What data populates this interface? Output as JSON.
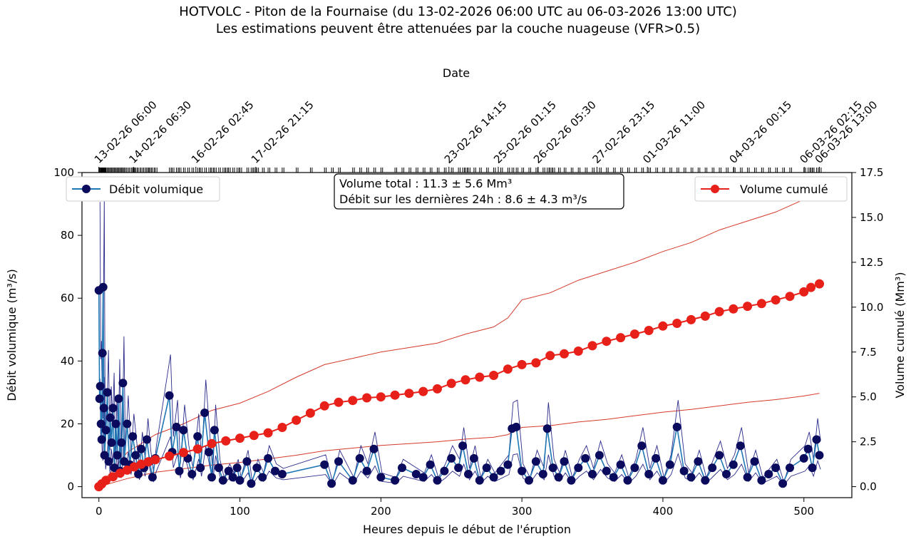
{
  "header": {
    "title": "HOTVOLC - Piton de la Fournaise (du 13-02-2026 06:00 UTC au 06-03-2026 13:00 UTC)",
    "subtitle": "Les estimations peuvent être attenuées par la couche nuageuse (VFR>0.5)"
  },
  "colors": {
    "debit_line": "#1f77b4",
    "debit_marker": "#0b0b5e",
    "volume": "#e8201a",
    "envelope": "#d43a2a",
    "debit_envelope": "#2a2a8a"
  },
  "chart_data": {
    "type": "line",
    "xlabel": "Heures depuis le début de l'éruption",
    "xlim": [
      -12,
      534
    ],
    "xticks": [
      0,
      100,
      200,
      300,
      400,
      500
    ],
    "top_axis_label": "Date",
    "top_ticks": [
      {
        "x": 0,
        "label": "13-02-26 06:00"
      },
      {
        "x": 24.5,
        "label": "14-02-26 06:30"
      },
      {
        "x": 68.75,
        "label": "16-02-26 02:45"
      },
      {
        "x": 111.25,
        "label": "17-02-26 21:15"
      },
      {
        "x": 248.25,
        "label": "23-02-26 14:15"
      },
      {
        "x": 283.25,
        "label": "25-02-26 01:15"
      },
      {
        "x": 311.5,
        "label": "26-02-26 05:30"
      },
      {
        "x": 353.25,
        "label": "27-02-26 23:15"
      },
      {
        "x": 389,
        "label": "01-03-26 11:00"
      },
      {
        "x": 450.25,
        "label": "04-03-26 00:15"
      },
      {
        "x": 500.25,
        "label": "06-03-26 02:15"
      },
      {
        "x": 511,
        "label": "06-03-26 13:00"
      }
    ],
    "left_axis": {
      "label": "Débit volumique (m³/s)",
      "ylim": [
        -3.5,
        100
      ],
      "ticks": [
        0,
        20,
        40,
        60,
        80,
        100
      ]
    },
    "right_axis": {
      "label": "Volume cumulé (Mm³)",
      "ylim": [
        -0.6125,
        17.5
      ],
      "ticks": [
        "0.0",
        "2.5",
        "5.0",
        "7.5",
        "10.0",
        "12.5",
        "15.0",
        "17.5"
      ]
    },
    "legend_left": {
      "label": "Débit volumique",
      "position": "upper-left"
    },
    "legend_right": {
      "label": "Volume cumulé",
      "position": "upper-right"
    },
    "annotation": [
      "Volume total : 11.3 ± 5.6 Mm³",
      "Débit sur les dernières 24h : 8.6 ± 4.3 m³/s"
    ],
    "series": [
      {
        "name": "Débit volumique",
        "axis": "left",
        "points": [
          [
            0,
            62.5
          ],
          [
            0.5,
            28
          ],
          [
            1,
            32
          ],
          [
            1.5,
            20
          ],
          [
            2,
            15
          ],
          [
            2.5,
            42.5
          ],
          [
            3,
            63.5
          ],
          [
            3.5,
            25
          ],
          [
            4,
            10
          ],
          [
            5,
            18
          ],
          [
            6,
            30
          ],
          [
            7,
            8
          ],
          [
            8,
            22
          ],
          [
            9,
            14
          ],
          [
            10,
            25
          ],
          [
            11,
            6
          ],
          [
            12,
            20
          ],
          [
            13,
            10
          ],
          [
            14,
            28
          ],
          [
            15,
            5
          ],
          [
            16,
            14
          ],
          [
            17,
            33
          ],
          [
            18,
            8
          ],
          [
            20,
            20
          ],
          [
            22,
            7
          ],
          [
            24,
            16
          ],
          [
            26,
            10
          ],
          [
            28,
            4
          ],
          [
            30,
            12
          ],
          [
            32,
            6
          ],
          [
            34,
            15
          ],
          [
            36,
            8
          ],
          [
            38,
            3
          ],
          [
            40,
            9
          ],
          [
            50,
            29
          ],
          [
            52,
            11
          ],
          [
            55,
            19
          ],
          [
            57,
            5
          ],
          [
            60,
            18
          ],
          [
            63,
            9
          ],
          [
            66,
            4
          ],
          [
            70,
            16
          ],
          [
            72,
            6
          ],
          [
            75,
            23.5
          ],
          [
            78,
            11
          ],
          [
            80,
            3
          ],
          [
            82,
            18
          ],
          [
            85,
            6
          ],
          [
            88,
            2
          ],
          [
            92,
            5
          ],
          [
            95,
            3
          ],
          [
            98,
            6
          ],
          [
            100,
            2
          ],
          [
            105,
            8
          ],
          [
            108,
            1
          ],
          [
            112,
            6
          ],
          [
            116,
            3
          ],
          [
            120,
            9
          ],
          [
            125,
            5
          ],
          [
            130,
            4
          ],
          [
            160,
            7
          ],
          [
            165,
            1
          ],
          [
            170,
            8
          ],
          [
            180,
            2
          ],
          [
            185,
            9
          ],
          [
            190,
            5
          ],
          [
            195,
            12
          ],
          [
            200,
            3
          ],
          [
            210,
            2
          ],
          [
            215,
            6
          ],
          [
            225,
            4
          ],
          [
            230,
            3
          ],
          [
            235,
            7
          ],
          [
            240,
            2
          ],
          [
            245,
            5
          ],
          [
            250,
            9
          ],
          [
            255,
            6
          ],
          [
            258,
            13
          ],
          [
            262,
            4
          ],
          [
            266,
            9
          ],
          [
            270,
            2
          ],
          [
            275,
            6
          ],
          [
            280,
            3
          ],
          [
            285,
            5
          ],
          [
            290,
            7
          ],
          [
            293,
            18.5
          ],
          [
            296,
            19
          ],
          [
            300,
            5
          ],
          [
            305,
            2
          ],
          [
            310,
            8
          ],
          [
            315,
            4
          ],
          [
            318,
            18.5
          ],
          [
            322,
            6
          ],
          [
            326,
            3
          ],
          [
            330,
            8
          ],
          [
            335,
            2
          ],
          [
            340,
            6
          ],
          [
            345,
            9
          ],
          [
            350,
            4
          ],
          [
            355,
            10
          ],
          [
            360,
            5
          ],
          [
            365,
            3
          ],
          [
            370,
            7
          ],
          [
            375,
            2
          ],
          [
            380,
            6
          ],
          [
            385,
            13
          ],
          [
            390,
            4
          ],
          [
            395,
            9
          ],
          [
            400,
            2
          ],
          [
            405,
            7
          ],
          [
            410,
            19
          ],
          [
            415,
            5
          ],
          [
            420,
            3
          ],
          [
            425,
            8
          ],
          [
            430,
            2
          ],
          [
            435,
            6
          ],
          [
            440,
            10
          ],
          [
            445,
            4
          ],
          [
            450,
            7
          ],
          [
            455,
            13
          ],
          [
            460,
            3
          ],
          [
            465,
            8
          ],
          [
            470,
            2
          ],
          [
            475,
            4
          ],
          [
            480,
            6
          ],
          [
            485,
            1
          ],
          [
            490,
            6
          ],
          [
            500,
            9
          ],
          [
            503,
            12
          ],
          [
            506,
            6
          ],
          [
            509,
            15
          ],
          [
            511,
            10
          ]
        ]
      },
      {
        "name": "Volume cumulé",
        "axis": "right",
        "points": [
          [
            0,
            0
          ],
          [
            2,
            0.15
          ],
          [
            5,
            0.35
          ],
          [
            10,
            0.55
          ],
          [
            15,
            0.75
          ],
          [
            20,
            0.92
          ],
          [
            25,
            1.1
          ],
          [
            30,
            1.25
          ],
          [
            35,
            1.38
          ],
          [
            40,
            1.5
          ],
          [
            50,
            1.7
          ],
          [
            60,
            1.9
          ],
          [
            70,
            2.1
          ],
          [
            80,
            2.4
          ],
          [
            90,
            2.55
          ],
          [
            100,
            2.7
          ],
          [
            110,
            2.85
          ],
          [
            120,
            3.0
          ],
          [
            130,
            3.3
          ],
          [
            140,
            3.7
          ],
          [
            150,
            4.1
          ],
          [
            160,
            4.5
          ],
          [
            170,
            4.7
          ],
          [
            180,
            4.8
          ],
          [
            190,
            4.95
          ],
          [
            200,
            5.0
          ],
          [
            210,
            5.1
          ],
          [
            220,
            5.2
          ],
          [
            230,
            5.3
          ],
          [
            240,
            5.45
          ],
          [
            250,
            5.75
          ],
          [
            260,
            5.95
          ],
          [
            270,
            6.1
          ],
          [
            280,
            6.2
          ],
          [
            290,
            6.55
          ],
          [
            300,
            6.8
          ],
          [
            310,
            6.9
          ],
          [
            320,
            7.3
          ],
          [
            330,
            7.4
          ],
          [
            340,
            7.55
          ],
          [
            350,
            7.85
          ],
          [
            360,
            8.1
          ],
          [
            370,
            8.3
          ],
          [
            380,
            8.5
          ],
          [
            390,
            8.7
          ],
          [
            400,
            8.95
          ],
          [
            410,
            9.1
          ],
          [
            420,
            9.3
          ],
          [
            430,
            9.5
          ],
          [
            440,
            9.75
          ],
          [
            450,
            9.9
          ],
          [
            460,
            10.05
          ],
          [
            470,
            10.2
          ],
          [
            480,
            10.4
          ],
          [
            490,
            10.6
          ],
          [
            500,
            10.85
          ],
          [
            505,
            11.1
          ],
          [
            511,
            11.3
          ]
        ]
      }
    ],
    "envelope_upper": [
      [
        0,
        0
      ],
      [
        20,
        1.9
      ],
      [
        40,
        2.9
      ],
      [
        60,
        3.5
      ],
      [
        80,
        4.25
      ],
      [
        100,
        4.65
      ],
      [
        120,
        5.3
      ],
      [
        140,
        6.1
      ],
      [
        160,
        6.8
      ],
      [
        180,
        7.15
      ],
      [
        200,
        7.5
      ],
      [
        220,
        7.75
      ],
      [
        240,
        8.0
      ],
      [
        260,
        8.5
      ],
      [
        280,
        8.9
      ],
      [
        290,
        9.4
      ],
      [
        300,
        10.4
      ],
      [
        320,
        10.8
      ],
      [
        340,
        11.5
      ],
      [
        360,
        12.0
      ],
      [
        380,
        12.5
      ],
      [
        400,
        13.1
      ],
      [
        420,
        13.6
      ],
      [
        440,
        14.3
      ],
      [
        460,
        14.8
      ],
      [
        480,
        15.3
      ],
      [
        500,
        16.0
      ],
      [
        511,
        16.6
      ]
    ],
    "envelope_lower": [
      [
        0,
        0
      ],
      [
        20,
        0.45
      ],
      [
        40,
        0.8
      ],
      [
        60,
        1.0
      ],
      [
        80,
        1.2
      ],
      [
        100,
        1.35
      ],
      [
        120,
        1.55
      ],
      [
        140,
        1.75
      ],
      [
        160,
        2.0
      ],
      [
        180,
        2.15
      ],
      [
        200,
        2.3
      ],
      [
        220,
        2.4
      ],
      [
        240,
        2.5
      ],
      [
        260,
        2.65
      ],
      [
        280,
        2.75
      ],
      [
        290,
        2.9
      ],
      [
        300,
        3.3
      ],
      [
        320,
        3.4
      ],
      [
        340,
        3.6
      ],
      [
        360,
        3.75
      ],
      [
        380,
        3.95
      ],
      [
        400,
        4.15
      ],
      [
        420,
        4.3
      ],
      [
        440,
        4.5
      ],
      [
        460,
        4.7
      ],
      [
        480,
        4.85
      ],
      [
        500,
        5.05
      ],
      [
        511,
        5.2
      ]
    ]
  }
}
